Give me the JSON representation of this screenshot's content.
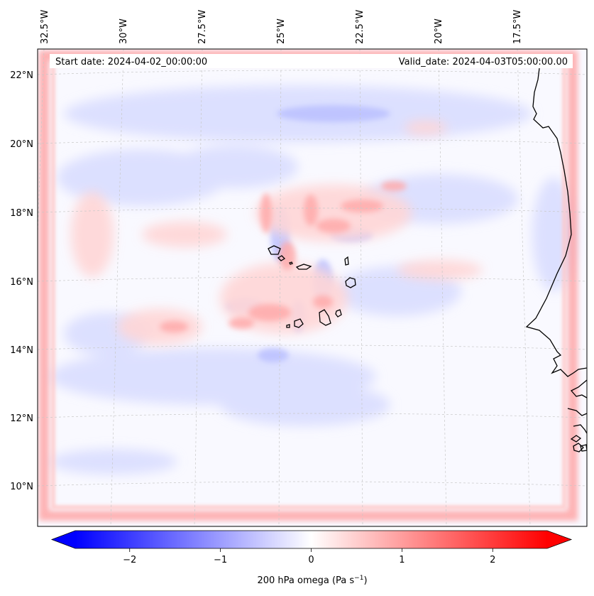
{
  "header": {
    "start_date": "Start date: 2024-04-02_00:00:00",
    "valid_date": "Valid_date: 2024-04-03T05:00:00.00"
  },
  "map": {
    "lon_labels": [
      "32.5°W",
      "30°W",
      "27.5°W",
      "25°W",
      "22.5°W",
      "20°W",
      "17.5°W"
    ],
    "lat_labels": [
      "22°N",
      "20°N",
      "18°N",
      "16°N",
      "14°N",
      "12°N",
      "10°N"
    ],
    "gridlines": true,
    "coastline_color": "#000000"
  },
  "colorbar": {
    "label_main": "200 hPa omega (Pa s",
    "label_sup": "−1",
    "label_close": ")",
    "ticks": [
      "−2",
      "−1",
      "0",
      "1",
      "2"
    ],
    "tick_values": [
      -2,
      -1,
      0,
      1,
      2
    ],
    "range": [
      -2.6,
      2.6
    ],
    "extend": "both",
    "colormap": "bwr",
    "min_color": "#0000ff",
    "mid_color": "#ffffff",
    "max_color": "#ff0000"
  }
}
